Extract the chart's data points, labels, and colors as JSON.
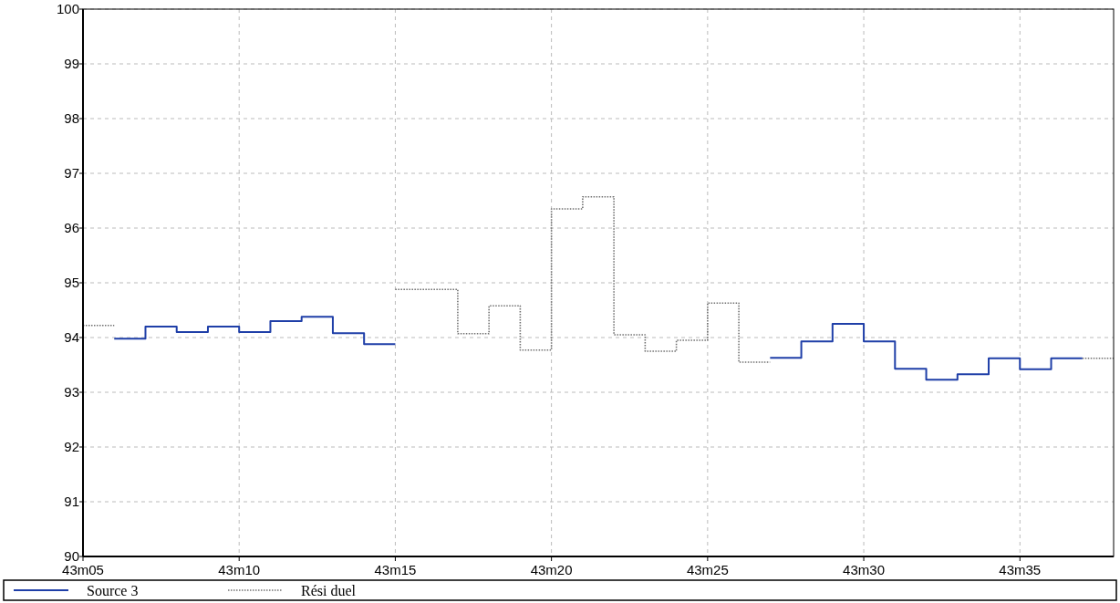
{
  "chart_data": {
    "type": "step",
    "categories": [
      "43m05",
      null,
      null,
      null,
      null,
      "43m10",
      null,
      null,
      null,
      null,
      "43m15",
      null,
      null,
      null,
      null,
      "43m20",
      null,
      null,
      null,
      null,
      "43m25",
      null,
      null,
      null,
      null,
      "43m30",
      null,
      null,
      null,
      null,
      "43m35",
      null,
      null,
      null
    ],
    "series": [
      {
        "name": "Source 3",
        "color": "#1f3fa8",
        "values": [
          null,
          93.98,
          94.2,
          94.1,
          94.2,
          94.1,
          94.3,
          94.38,
          94.08,
          93.88,
          null,
          null,
          null,
          null,
          null,
          null,
          null,
          null,
          null,
          null,
          null,
          null,
          93.63,
          93.93,
          94.25,
          93.93,
          93.43,
          93.23,
          93.33,
          93.62,
          93.42,
          93.62,
          93.62,
          null
        ]
      },
      {
        "name": "Rési duel",
        "color": "#707070",
        "line_style": "dotted",
        "values": [
          94.22,
          null,
          null,
          null,
          null,
          null,
          null,
          null,
          null,
          null,
          94.88,
          94.88,
          94.07,
          94.58,
          93.77,
          96.35,
          96.57,
          94.05,
          93.75,
          93.95,
          94.63,
          93.55,
          null,
          null,
          null,
          null,
          null,
          null,
          null,
          null,
          null,
          null,
          93.62,
          93.62
        ]
      }
    ],
    "ylim": [
      90,
      100
    ],
    "yticks": [
      90,
      91,
      92,
      93,
      94,
      95,
      96,
      97,
      98,
      99,
      100
    ],
    "grid": true,
    "legend": "bottom"
  }
}
